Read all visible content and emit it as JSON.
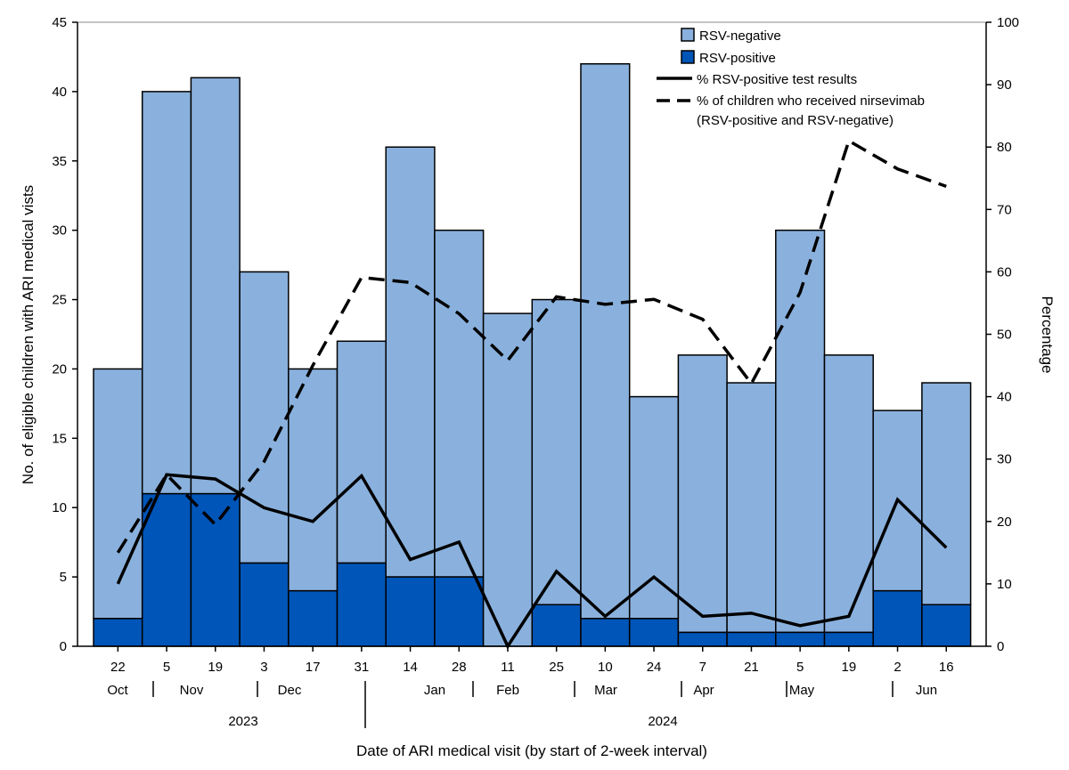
{
  "chart_data": {
    "type": "bar",
    "stacked": true,
    "categories": [
      "22 Oct 2023",
      "5 Nov 2023",
      "19 Nov 2023",
      "3 Dec 2023",
      "17 Dec 2023",
      "31 Dec 2023",
      "14 Jan 2024",
      "28 Jan 2024",
      "11 Feb 2024",
      "25 Feb 2024",
      "10 Mar 2024",
      "24 Mar 2024",
      "7 Apr 2024",
      "21 Apr 2024",
      "5 May 2024",
      "19 May 2024",
      "2 Jun 2024",
      "16 Jun 2024"
    ],
    "day_labels": [
      "22",
      "5",
      "19",
      "3",
      "17",
      "31",
      "14",
      "28",
      "11",
      "25",
      "10",
      "24",
      "7",
      "21",
      "5",
      "19",
      "2",
      "16"
    ],
    "month_labels": [
      "Oct",
      "Nov",
      "Dec",
      "Jan",
      "Feb",
      "Mar",
      "Apr",
      "May",
      "Jun"
    ],
    "year_labels": [
      "2023",
      "2024"
    ],
    "series": [
      {
        "name": "RSV-positive",
        "axis": "left",
        "color": "#0055b8",
        "values": [
          2,
          11,
          11,
          6,
          4,
          6,
          5,
          5,
          0,
          3,
          2,
          2,
          1,
          1,
          1,
          1,
          4,
          3
        ]
      },
      {
        "name": "RSV-negative",
        "axis": "left",
        "color": "#8ab1dd",
        "values": [
          18,
          29,
          30,
          21,
          16,
          16,
          31,
          25,
          24,
          22,
          40,
          16,
          20,
          18,
          29,
          20,
          13,
          16
        ]
      },
      {
        "name": "% RSV-positive test results",
        "axis": "right",
        "type": "line",
        "style": "solid",
        "values": [
          10,
          27.5,
          26.8,
          22.2,
          20,
          27.3,
          13.9,
          16.7,
          0,
          12,
          4.8,
          11.1,
          4.8,
          5.3,
          3.3,
          4.8,
          23.5,
          15.8
        ]
      },
      {
        "name": "% of children who received nirsevimab",
        "name_line2": "(RSV-positive and RSV-negative)",
        "axis": "right",
        "type": "line",
        "style": "dashed",
        "values": [
          15,
          27.5,
          19.5,
          29.6,
          45,
          59.1,
          58.3,
          53.3,
          45.8,
          56,
          54.8,
          55.6,
          52.4,
          42.1,
          56.7,
          81,
          76.5,
          73.7
        ]
      }
    ],
    "xlabel": "Date of ARI medical visit (by start of 2-week interval)",
    "ylabel": "No. of eligible children with ARI medical vists",
    "ylabel_right": "Percentage",
    "ylim": [
      0,
      45
    ],
    "yticks": [
      0,
      5,
      10,
      15,
      20,
      25,
      30,
      35,
      40,
      45
    ],
    "ylim_right": [
      0,
      100
    ],
    "yticks_right": [
      0,
      10,
      20,
      30,
      40,
      50,
      60,
      70,
      80,
      90,
      100
    ],
    "grid": false,
    "legend_position": "top-right"
  }
}
